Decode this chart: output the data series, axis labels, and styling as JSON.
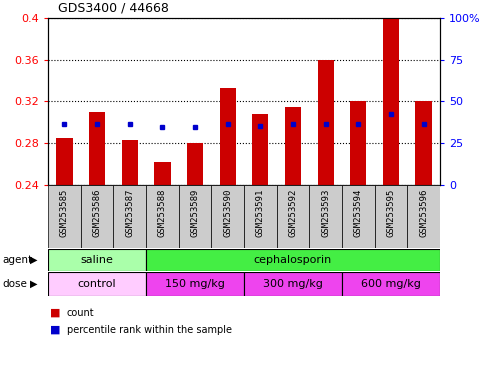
{
  "title": "GDS3400 / 44668",
  "samples": [
    "GSM253585",
    "GSM253586",
    "GSM253587",
    "GSM253588",
    "GSM253589",
    "GSM253590",
    "GSM253591",
    "GSM253592",
    "GSM253593",
    "GSM253594",
    "GSM253595",
    "GSM253596"
  ],
  "bar_values": [
    0.285,
    0.31,
    0.283,
    0.262,
    0.28,
    0.333,
    0.308,
    0.315,
    0.36,
    0.32,
    0.4,
    0.32
  ],
  "percentile_values": [
    0.298,
    0.298,
    0.298,
    0.296,
    0.296,
    0.298,
    0.297,
    0.298,
    0.298,
    0.298,
    0.308,
    0.298
  ],
  "bar_color": "#cc0000",
  "percentile_color": "#0000cc",
  "ylim": [
    0.24,
    0.4
  ],
  "yticks": [
    0.24,
    0.28,
    0.32,
    0.36,
    0.4
  ],
  "right_ytick_percents": [
    0,
    25,
    50,
    75,
    100
  ],
  "right_ytick_labels": [
    "0",
    "25",
    "50",
    "75",
    "100%"
  ],
  "agent_groups": [
    {
      "label": "saline",
      "start": 0,
      "end": 3,
      "color": "#aaffaa"
    },
    {
      "label": "cephalosporin",
      "start": 3,
      "end": 12,
      "color": "#44ee44"
    }
  ],
  "dose_groups": [
    {
      "label": "control",
      "start": 0,
      "end": 3,
      "color": "#ffccff"
    },
    {
      "label": "150 mg/kg",
      "start": 3,
      "end": 6,
      "color": "#ee44ee"
    },
    {
      "label": "300 mg/kg",
      "start": 6,
      "end": 9,
      "color": "#ee44ee"
    },
    {
      "label": "600 mg/kg",
      "start": 9,
      "end": 12,
      "color": "#ee44ee"
    }
  ],
  "legend_count_color": "#cc0000",
  "legend_percentile_color": "#0000cc",
  "bar_width": 0.5,
  "tick_label_bg": "#cccccc",
  "plot_bg_color": "#ffffff"
}
